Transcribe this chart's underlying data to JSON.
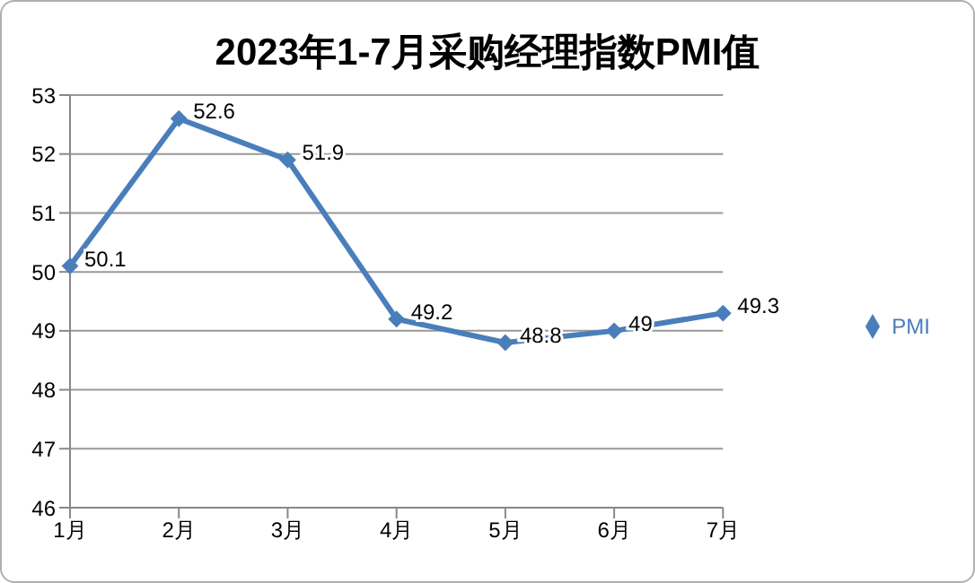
{
  "chart_data": {
    "type": "line",
    "title": "2023年1-7月采购经理指数PMI值",
    "categories": [
      "1月",
      "2月",
      "3月",
      "4月",
      "5月",
      "6月",
      "7月"
    ],
    "series": [
      {
        "name": "PMI",
        "color": "#4a7ebb",
        "values": [
          50.1,
          52.6,
          51.9,
          49.2,
          48.8,
          49,
          49.3
        ]
      }
    ],
    "ylim": [
      46,
      53
    ],
    "yticks": [
      46,
      47,
      48,
      49,
      50,
      51,
      52,
      53
    ],
    "grid": "y",
    "legend": "right",
    "marker": "diamond",
    "line_style": "solid",
    "data_labels": true
  }
}
